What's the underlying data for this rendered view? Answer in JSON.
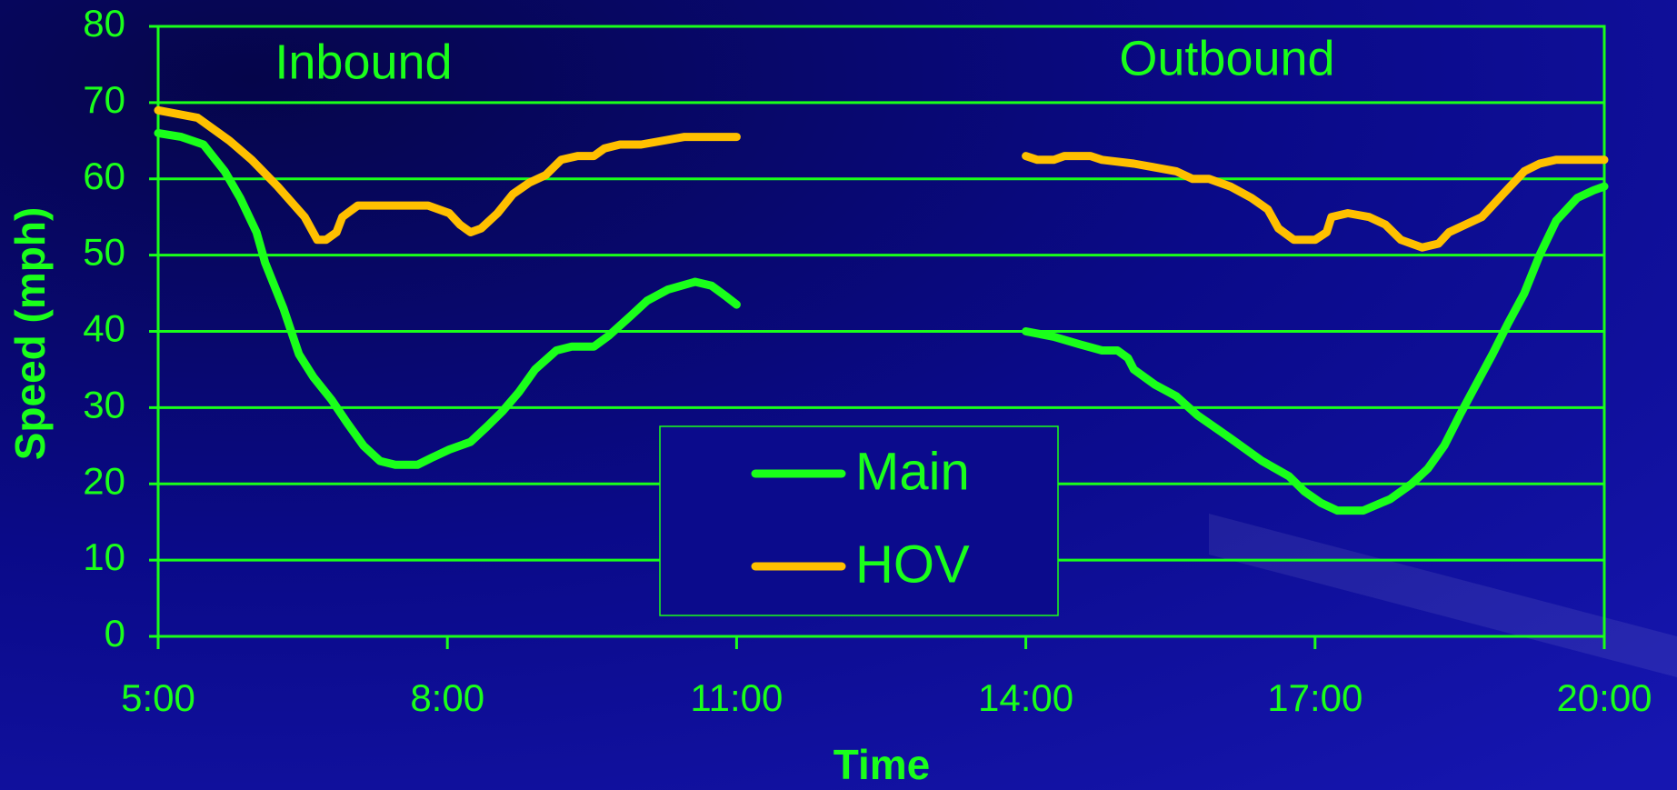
{
  "chart_data": {
    "type": "line",
    "x_label": "Time",
    "y_label": "Speed (mph)",
    "annotations": [
      "Inbound",
      "Outbound"
    ],
    "xlim": [
      5,
      20
    ],
    "xticks": [
      {
        "value": 5,
        "label": "5:00"
      },
      {
        "value": 8,
        "label": "8:00"
      },
      {
        "value": 11,
        "label": "11:00"
      },
      {
        "value": 14,
        "label": "14:00"
      },
      {
        "value": 17,
        "label": "17:00"
      },
      {
        "value": 20,
        "label": "20:00"
      }
    ],
    "ylim": [
      0,
      80
    ],
    "yticks": [
      0,
      10,
      20,
      30,
      40,
      50,
      60,
      70,
      80
    ],
    "grid": true,
    "legend": "bottom",
    "series": [
      {
        "name": "Main",
        "color": "#1aff1a",
        "x": [
          5.0,
          5.24,
          5.47,
          5.69,
          5.85,
          6.02,
          6.11,
          6.3,
          6.46,
          6.61,
          6.8,
          6.96,
          7.13,
          7.3,
          7.46,
          7.69,
          7.85,
          8.02,
          8.24,
          8.41,
          8.57,
          8.74,
          8.91,
          9.13,
          9.29,
          9.52,
          9.68,
          9.9,
          10.07,
          10.29,
          10.57,
          10.74,
          10.9,
          11.0,
          null,
          14.0,
          14.29,
          14.56,
          14.79,
          14.95,
          15.06,
          15.12,
          15.34,
          15.56,
          15.78,
          16.12,
          16.45,
          16.73,
          16.89,
          17.06,
          17.23,
          17.5,
          17.78,
          18.0,
          18.17,
          18.34,
          18.5,
          18.67,
          18.84,
          19.0,
          19.17,
          19.33,
          19.5,
          19.72,
          19.89,
          20.0
        ],
        "values": [
          66,
          65.5,
          64.5,
          61,
          57.5,
          53,
          49,
          43,
          37,
          34,
          31,
          28,
          25,
          23,
          22.5,
          22.5,
          23.5,
          24.5,
          25.5,
          27.5,
          29.5,
          32,
          35,
          37.5,
          38,
          38,
          39.5,
          42,
          44,
          45.5,
          46.5,
          46,
          44.5,
          43.5,
          null,
          40,
          39.3,
          38.3,
          37.5,
          37.5,
          36.5,
          35,
          33,
          31.5,
          29,
          26,
          23,
          21,
          19,
          17.5,
          16.5,
          16.5,
          18,
          20,
          22,
          25,
          29,
          33,
          37,
          41,
          45,
          50,
          54.5,
          57.5,
          58.5,
          59
        ]
      },
      {
        "name": "HOV",
        "color": "#ffc000",
        "x": [
          5.0,
          5.41,
          5.74,
          5.97,
          6.24,
          6.52,
          6.65,
          6.74,
          6.85,
          6.91,
          7.07,
          7.35,
          7.8,
          8.02,
          8.13,
          8.24,
          8.35,
          8.52,
          8.68,
          8.85,
          9.02,
          9.18,
          9.35,
          9.52,
          9.63,
          9.79,
          10.01,
          10.46,
          11.0,
          null,
          14.0,
          14.12,
          14.29,
          14.4,
          14.67,
          14.79,
          15.12,
          15.34,
          15.56,
          15.73,
          15.9,
          16.12,
          16.34,
          16.51,
          16.62,
          16.78,
          17.0,
          17.12,
          17.17,
          17.34,
          17.56,
          17.73,
          17.89,
          18.11,
          18.28,
          18.39,
          18.56,
          18.73,
          18.95,
          19.17,
          19.33,
          19.5,
          19.78,
          20.0
        ],
        "values": [
          69,
          68,
          65,
          62.5,
          59,
          55,
          52,
          52,
          53,
          55,
          56.5,
          56.5,
          56.5,
          55.5,
          54,
          53,
          53.5,
          55.5,
          58,
          59.5,
          60.5,
          62.5,
          63,
          63,
          64,
          64.5,
          64.5,
          65.5,
          65.5,
          null,
          63,
          62.5,
          62.5,
          63,
          63,
          62.5,
          62,
          61.5,
          61,
          60,
          60,
          59,
          57.5,
          56,
          53.5,
          52,
          52,
          53,
          55,
          55.5,
          55,
          54,
          52,
          51,
          51.5,
          53,
          54,
          55,
          58,
          61,
          62,
          62.5,
          62.5,
          62.5
        ]
      }
    ]
  }
}
